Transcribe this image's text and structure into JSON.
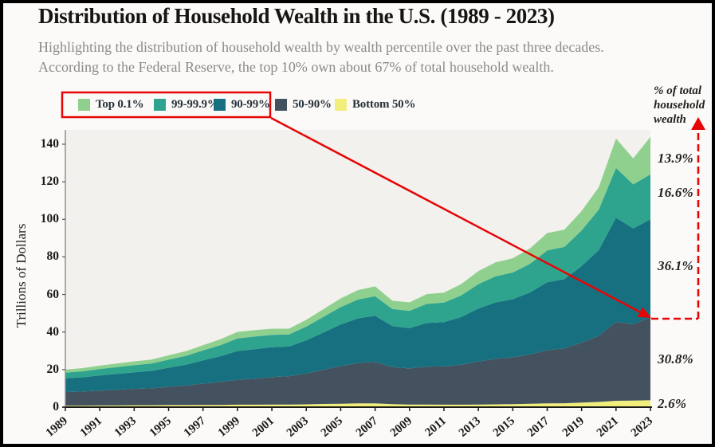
{
  "header": {
    "title": "Distribution of Household Wealth in the U.S. (1989 - 2023)",
    "subtitle_line1": "Highlighting the distribution of household wealth by wealth percentile over the past three decades.",
    "subtitle_line2": "According to the Federal Reserve, the top 10% own about 67% of total household wealth."
  },
  "legend": {
    "items": [
      {
        "label": "Top 0.1%",
        "color": "#90d08f"
      },
      {
        "label": "99-99.9%",
        "color": "#2ea48f"
      },
      {
        "label": "90-99%",
        "color": "#177080"
      },
      {
        "label": "50-90%",
        "color": "#445260"
      },
      {
        "label": "Bottom 50%",
        "color": "#f1ee7c"
      }
    ],
    "highlighted_items": [
      "Top 0.1%",
      "99-99.9%",
      "90-99%"
    ]
  },
  "axes": {
    "y_title": "Trillions of Dollars"
  },
  "annotations": {
    "right_header": "% of total household wealth",
    "shares": [
      {
        "series": "Top 0.1%",
        "value": "13.9%"
      },
      {
        "series": "99-99.9%",
        "value": "16.6%"
      },
      {
        "series": "90-99%",
        "value": "36.1%"
      },
      {
        "series": "50-90%",
        "value": "30.8%"
      },
      {
        "series": "Bottom 50%",
        "value": "2.6%"
      }
    ]
  },
  "colors": {
    "accent_red": "#e60505",
    "plot_background": "#f2f1ed",
    "page_background": "#fbfaf8",
    "axis_line": "#8a8a8a",
    "x_axis_line": "#1a1a1a",
    "text_dark": "#1c1a18",
    "text_gray": "#8b8a85"
  },
  "chart_data": {
    "type": "area",
    "stacked": true,
    "title": "Distribution of Household Wealth in the U.S. (1989 - 2023)",
    "xlabel": "",
    "ylabel": "Trillions of Dollars",
    "ylim": [
      0,
      140
    ],
    "y_ticks": [
      0,
      20,
      40,
      60,
      80,
      100,
      120,
      140
    ],
    "grid": false,
    "legend_position": "top-left",
    "x": [
      1989,
      1990,
      1991,
      1992,
      1993,
      1994,
      1995,
      1996,
      1997,
      1998,
      1999,
      2000,
      2001,
      2002,
      2003,
      2004,
      2005,
      2006,
      2007,
      2008,
      2009,
      2010,
      2011,
      2012,
      2013,
      2014,
      2015,
      2016,
      2017,
      2018,
      2019,
      2020,
      2021,
      2022,
      2023
    ],
    "x_tick_labels": [
      "1989",
      "1991",
      "1993",
      "1995",
      "1997",
      "1999",
      "2001",
      "2003",
      "2005",
      "2007",
      "2009",
      "2011",
      "2013",
      "2015",
      "2017",
      "2019",
      "2021",
      "2023"
    ],
    "series": [
      {
        "name": "Bottom 50%",
        "color": "#f1ee7c",
        "values": [
          0.8,
          0.8,
          0.9,
          0.9,
          1.0,
          1.0,
          1.1,
          1.1,
          1.2,
          1.2,
          1.3,
          1.3,
          1.4,
          1.4,
          1.5,
          1.7,
          1.8,
          2.0,
          2.0,
          1.6,
          1.4,
          1.4,
          1.3,
          1.3,
          1.4,
          1.5,
          1.6,
          1.8,
          2.0,
          2.1,
          2.4,
          2.8,
          3.4,
          3.5,
          3.7
        ]
      },
      {
        "name": "50-90%",
        "color": "#445260",
        "values": [
          7.2,
          7.5,
          7.9,
          8.3,
          8.7,
          9.0,
          9.7,
          10.4,
          11.3,
          12.2,
          13.3,
          13.9,
          14.6,
          15.1,
          16.4,
          18.2,
          20.1,
          21.5,
          22.1,
          19.7,
          19.2,
          20.2,
          20.4,
          21.3,
          22.9,
          24.2,
          24.9,
          26.3,
          28.3,
          29.2,
          31.9,
          35.2,
          42.0,
          40.6,
          44.3
        ]
      },
      {
        "name": "90-99%",
        "color": "#177080",
        "values": [
          7.3,
          7.6,
          8.1,
          8.5,
          8.9,
          9.3,
          10.2,
          11.1,
          12.4,
          13.7,
          15.3,
          15.7,
          15.9,
          15.8,
          17.7,
          19.9,
          22.1,
          23.8,
          24.6,
          21.9,
          21.5,
          23.2,
          23.6,
          25.4,
          28.2,
          30.1,
          31.0,
          33.0,
          36.2,
          36.9,
          40.8,
          45.6,
          55.5,
          51.0,
          52.0
        ]
      },
      {
        "name": "99-99.9%",
        "color": "#2ea48f",
        "values": [
          3.1,
          3.2,
          3.4,
          3.6,
          3.8,
          3.9,
          4.3,
          4.7,
          5.3,
          5.9,
          6.7,
          6.7,
          6.6,
          6.4,
          7.3,
          8.3,
          9.3,
          10.0,
          10.4,
          9.1,
          9.2,
          10.2,
          10.4,
          11.5,
          13.0,
          13.9,
          14.2,
          15.2,
          17.0,
          17.1,
          19.0,
          21.6,
          26.5,
          23.5,
          23.9
        ]
      },
      {
        "name": "Top 0.1%",
        "color": "#90d08f",
        "values": [
          1.6,
          1.7,
          1.8,
          1.9,
          2.0,
          2.1,
          2.3,
          2.5,
          2.8,
          3.1,
          3.5,
          3.4,
          3.3,
          3.1,
          3.6,
          4.1,
          4.6,
          5.0,
          5.2,
          4.4,
          4.5,
          5.2,
          5.3,
          6.0,
          6.9,
          7.4,
          7.6,
          8.2,
          9.2,
          9.2,
          10.3,
          11.9,
          15.6,
          13.9,
          20.0
        ]
      }
    ],
    "end_share_labels": [
      {
        "series": "Top 0.1%",
        "share": "13.9%"
      },
      {
        "series": "99-99.9%",
        "share": "16.6%"
      },
      {
        "series": "90-99%",
        "share": "36.1%"
      },
      {
        "series": "50-90%",
        "share": "30.8%"
      },
      {
        "series": "Bottom 50%",
        "share": "2.6%"
      }
    ]
  }
}
